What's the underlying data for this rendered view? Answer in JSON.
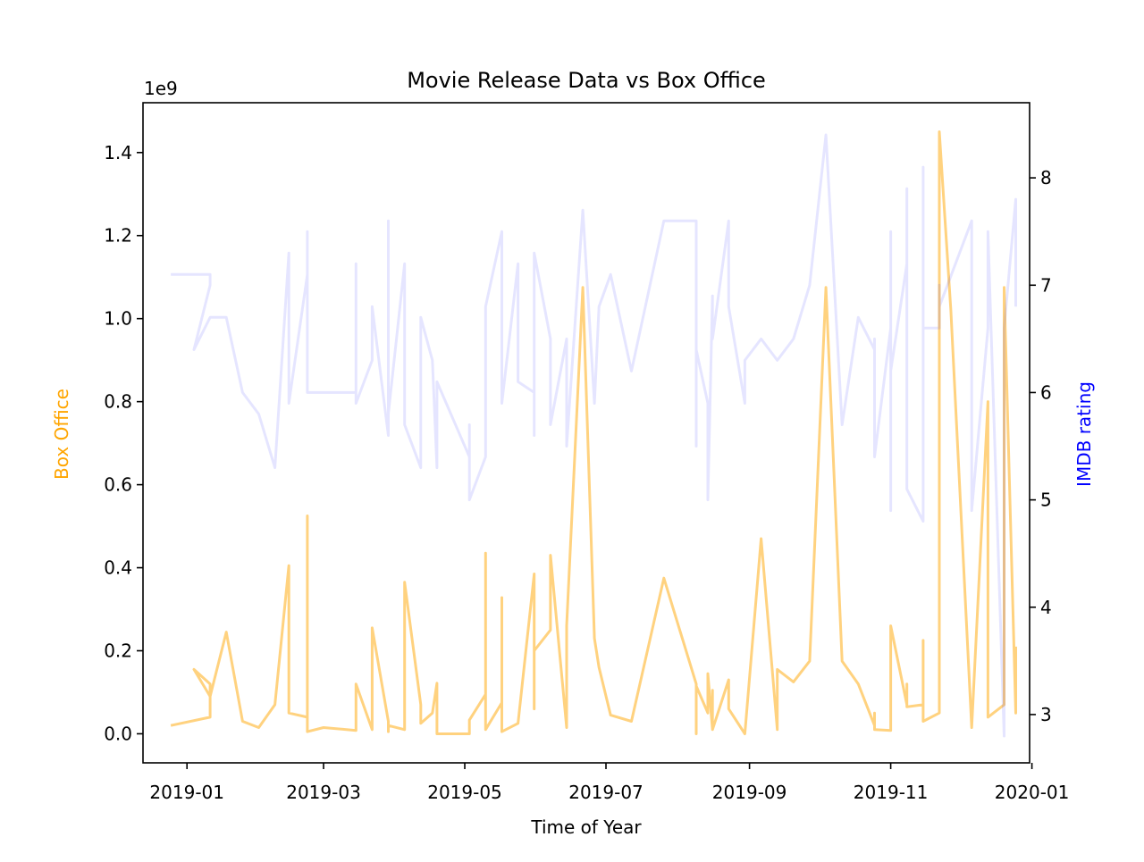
{
  "chart_data": {
    "type": "line",
    "title": "Movie Release Data vs Box Office",
    "xlabel": "Time of Year",
    "ylabel_left": "Box Office",
    "ylabel_right": "IMDB rating",
    "left_axis_multiplier": "1e9",
    "xlim": [
      "2018-12-13",
      "2019-12-31"
    ],
    "ylim_left": [
      -0.07,
      1.52
    ],
    "ylim_right": [
      2.55,
      8.7
    ],
    "x_ticks": [
      "2019-01",
      "2019-03",
      "2019-05",
      "2019-07",
      "2019-09",
      "2019-11",
      "2020-01"
    ],
    "y_ticks_left": [
      "0.0",
      "0.2",
      "0.4",
      "0.6",
      "0.8",
      "1.0",
      "1.2",
      "1.4"
    ],
    "y_ticks_right": [
      "3",
      "4",
      "5",
      "6",
      "7",
      "8"
    ],
    "grid": false,
    "colors": {
      "box_office": "#FFA500",
      "imdb": "#0000FF",
      "ylabel_left": "#FFA500",
      "ylabel_right": "#0000FF"
    },
    "series": [
      {
        "axis": "left",
        "color": "#FFA500",
        "opacity": 0.5,
        "points": [
          [
            "2018-12-25",
            0.02
          ],
          [
            "2019-01-11",
            0.04
          ],
          [
            "2019-01-11",
            0.12
          ],
          [
            "2019-01-04",
            0.155
          ],
          [
            "2019-01-11",
            0.09
          ],
          [
            "2019-01-18",
            0.245
          ],
          [
            "2019-01-25",
            0.03
          ],
          [
            "2019-02-01",
            0.015
          ],
          [
            "2019-02-08",
            0.07
          ],
          [
            "2019-02-14",
            0.405
          ],
          [
            "2019-02-14",
            0.05
          ],
          [
            "2019-02-22",
            0.04
          ],
          [
            "2019-02-22",
            0.525
          ],
          [
            "2019-02-22",
            0.005
          ],
          [
            "2019-03-01",
            0.015
          ],
          [
            "2019-03-15",
            0.008
          ],
          [
            "2019-03-15",
            0.12
          ],
          [
            "2019-03-22",
            0.01
          ],
          [
            "2019-03-22",
            0.255
          ],
          [
            "2019-03-29",
            0.03
          ],
          [
            "2019-03-29",
            0.005
          ],
          [
            "2019-03-29",
            0.02
          ],
          [
            "2019-04-05",
            0.01
          ],
          [
            "2019-04-05",
            0.365
          ],
          [
            "2019-04-12",
            0.07
          ],
          [
            "2019-04-12",
            0.025
          ],
          [
            "2019-04-17",
            0.05
          ],
          [
            "2019-04-19",
            0.122
          ],
          [
            "2019-04-19",
            0.0
          ],
          [
            "2019-05-03",
            0.0
          ],
          [
            "2019-05-03",
            0.033
          ],
          [
            "2019-05-10",
            0.095
          ],
          [
            "2019-05-10",
            0.435
          ],
          [
            "2019-05-10",
            0.01
          ],
          [
            "2019-05-17",
            0.075
          ],
          [
            "2019-05-17",
            0.328
          ],
          [
            "2019-05-17",
            0.005
          ],
          [
            "2019-05-24",
            0.025
          ],
          [
            "2019-05-31",
            0.385
          ],
          [
            "2019-05-31",
            0.06
          ],
          [
            "2019-05-31",
            0.2
          ],
          [
            "2019-06-07",
            0.25
          ],
          [
            "2019-06-07",
            0.43
          ],
          [
            "2019-06-14",
            0.015
          ],
          [
            "2019-06-14",
            0.26
          ],
          [
            "2019-06-21",
            1.075
          ],
          [
            "2019-06-26",
            0.23
          ],
          [
            "2019-06-28",
            0.16
          ],
          [
            "2019-07-03",
            0.045
          ],
          [
            "2019-07-12",
            0.03
          ],
          [
            "2019-07-26",
            0.375
          ],
          [
            "2019-08-09",
            0.12
          ],
          [
            "2019-08-09",
            0.0
          ],
          [
            "2019-08-09",
            0.115
          ],
          [
            "2019-08-14",
            0.05
          ],
          [
            "2019-08-14",
            0.145
          ],
          [
            "2019-08-16",
            0.01
          ],
          [
            "2019-08-16",
            0.105
          ],
          [
            "2019-08-16",
            0.01
          ],
          [
            "2019-08-23",
            0.13
          ],
          [
            "2019-08-23",
            0.06
          ],
          [
            "2019-08-30",
            0.0
          ],
          [
            "2019-09-06",
            0.47
          ],
          [
            "2019-09-13",
            0.01
          ],
          [
            "2019-09-13",
            0.155
          ],
          [
            "2019-09-20",
            0.125
          ],
          [
            "2019-09-27",
            0.175
          ],
          [
            "2019-10-04",
            1.075
          ],
          [
            "2019-10-11",
            0.175
          ],
          [
            "2019-10-18",
            0.12
          ],
          [
            "2019-10-25",
            0.02
          ],
          [
            "2019-10-25",
            0.05
          ],
          [
            "2019-10-25",
            0.01
          ],
          [
            "2019-11-01",
            0.008
          ],
          [
            "2019-11-01",
            0.26
          ],
          [
            "2019-11-08",
            0.07
          ],
          [
            "2019-11-08",
            0.12
          ],
          [
            "2019-11-08",
            0.065
          ],
          [
            "2019-11-15",
            0.07
          ],
          [
            "2019-11-15",
            0.225
          ],
          [
            "2019-11-15",
            0.03
          ],
          [
            "2019-11-22",
            0.05
          ],
          [
            "2019-11-22",
            1.45
          ],
          [
            "2019-11-27",
            1.02
          ],
          [
            "2019-12-06",
            0.015
          ],
          [
            "2019-12-13",
            0.8
          ],
          [
            "2019-12-13",
            0.04
          ],
          [
            "2019-12-20",
            0.07
          ],
          [
            "2019-12-20",
            1.075
          ],
          [
            "2019-12-25",
            0.05
          ],
          [
            "2019-12-25",
            0.21
          ]
        ]
      },
      {
        "axis": "right",
        "color": "#0000FF",
        "opacity": 0.1,
        "points": [
          [
            "2018-12-25",
            7.1
          ],
          [
            "2019-01-11",
            7.1
          ],
          [
            "2019-01-11",
            7.0
          ],
          [
            "2019-01-04",
            6.4
          ],
          [
            "2019-01-11",
            6.7
          ],
          [
            "2019-01-18",
            6.7
          ],
          [
            "2019-01-25",
            6.0
          ],
          [
            "2019-02-01",
            5.8
          ],
          [
            "2019-02-08",
            5.3
          ],
          [
            "2019-02-14",
            7.3
          ],
          [
            "2019-02-14",
            5.9
          ],
          [
            "2019-02-22",
            7.1
          ],
          [
            "2019-02-22",
            7.5
          ],
          [
            "2019-02-22",
            6.0
          ],
          [
            "2019-03-01",
            6.0
          ],
          [
            "2019-03-15",
            6.0
          ],
          [
            "2019-03-15",
            7.2
          ],
          [
            "2019-03-15",
            5.9
          ],
          [
            "2019-03-22",
            6.3
          ],
          [
            "2019-03-22",
            6.8
          ],
          [
            "2019-03-29",
            5.6
          ],
          [
            "2019-03-29",
            7.6
          ],
          [
            "2019-03-29",
            5.8
          ],
          [
            "2019-04-05",
            7.2
          ],
          [
            "2019-04-05",
            5.7
          ],
          [
            "2019-04-12",
            5.3
          ],
          [
            "2019-04-12",
            6.7
          ],
          [
            "2019-04-17",
            6.3
          ],
          [
            "2019-04-19",
            5.3
          ],
          [
            "2019-04-19",
            6.1
          ],
          [
            "2019-05-03",
            5.4
          ],
          [
            "2019-05-03",
            5.7
          ],
          [
            "2019-05-03",
            5.0
          ],
          [
            "2019-05-10",
            5.4
          ],
          [
            "2019-05-10",
            6.8
          ],
          [
            "2019-05-17",
            7.5
          ],
          [
            "2019-05-17",
            5.9
          ],
          [
            "2019-05-24",
            7.2
          ],
          [
            "2019-05-24",
            6.1
          ],
          [
            "2019-05-31",
            6.0
          ],
          [
            "2019-05-31",
            5.6
          ],
          [
            "2019-05-31",
            7.3
          ],
          [
            "2019-06-07",
            6.5
          ],
          [
            "2019-06-07",
            5.7
          ],
          [
            "2019-06-14",
            6.5
          ],
          [
            "2019-06-14",
            5.5
          ],
          [
            "2019-06-21",
            7.7
          ],
          [
            "2019-06-26",
            5.9
          ],
          [
            "2019-06-28",
            6.8
          ],
          [
            "2019-07-03",
            7.1
          ],
          [
            "2019-07-12",
            6.2
          ],
          [
            "2019-07-26",
            7.6
          ],
          [
            "2019-08-09",
            7.6
          ],
          [
            "2019-08-09",
            5.5
          ],
          [
            "2019-08-09",
            6.4
          ],
          [
            "2019-08-14",
            5.9
          ],
          [
            "2019-08-14",
            5.0
          ],
          [
            "2019-08-16",
            6.9
          ],
          [
            "2019-08-16",
            6.5
          ],
          [
            "2019-08-23",
            7.6
          ],
          [
            "2019-08-23",
            6.8
          ],
          [
            "2019-08-30",
            5.9
          ],
          [
            "2019-08-30",
            6.3
          ],
          [
            "2019-09-06",
            6.5
          ],
          [
            "2019-09-13",
            6.3
          ],
          [
            "2019-09-20",
            6.5
          ],
          [
            "2019-09-27",
            7.0
          ],
          [
            "2019-10-04",
            8.4
          ],
          [
            "2019-10-11",
            5.7
          ],
          [
            "2019-10-18",
            6.7
          ],
          [
            "2019-10-25",
            6.4
          ],
          [
            "2019-10-25",
            6.5
          ],
          [
            "2019-10-25",
            5.4
          ],
          [
            "2019-11-01",
            6.6
          ],
          [
            "2019-11-01",
            4.9
          ],
          [
            "2019-11-01",
            7.5
          ],
          [
            "2019-11-01",
            6.2
          ],
          [
            "2019-11-08",
            7.2
          ],
          [
            "2019-11-08",
            7.9
          ],
          [
            "2019-11-08",
            5.1
          ],
          [
            "2019-11-15",
            4.8
          ],
          [
            "2019-11-15",
            8.1
          ],
          [
            "2019-11-15",
            6.6
          ],
          [
            "2019-11-22",
            6.6
          ],
          [
            "2019-11-22",
            7.0
          ],
          [
            "2019-11-22",
            6.8
          ],
          [
            "2019-12-06",
            7.6
          ],
          [
            "2019-12-06",
            4.9
          ],
          [
            "2019-12-13",
            6.6
          ],
          [
            "2019-12-13",
            7.5
          ],
          [
            "2019-12-20",
            2.8
          ],
          [
            "2019-12-20",
            6.6
          ],
          [
            "2019-12-25",
            7.8
          ],
          [
            "2019-12-25",
            6.8
          ]
        ]
      }
    ]
  }
}
